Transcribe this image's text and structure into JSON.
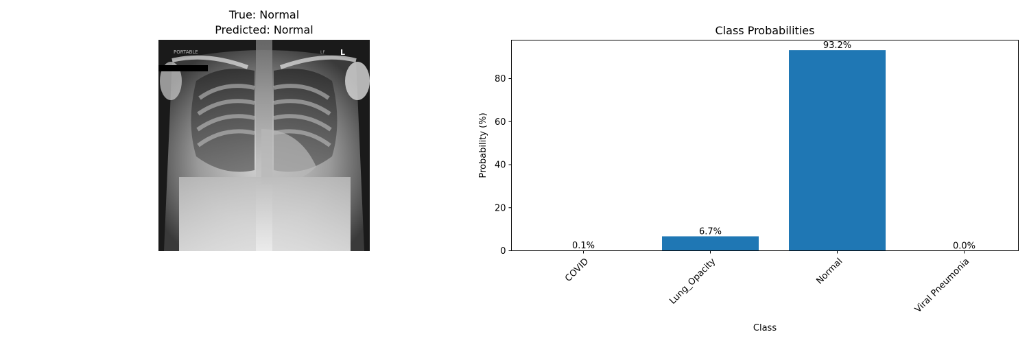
{
  "left_panel": {
    "title_true": "True: Normal",
    "title_predicted": "Predicted: Normal",
    "image_text": {
      "portable": "PORTABLE",
      "marker": "L",
      "side": "LF"
    }
  },
  "colors": {
    "bar": "#1f77b4",
    "axis": "#000000"
  },
  "chart_data": {
    "type": "bar",
    "title": "Class Probabilities",
    "xlabel": "Class",
    "ylabel": "Probability (%)",
    "categories": [
      "COVID",
      "Lung_Opacity",
      "Normal",
      "Viral Pneumonia"
    ],
    "values": [
      0.1,
      6.7,
      93.2,
      0.0
    ],
    "data_labels": [
      "0.1%",
      "6.7%",
      "93.2%",
      "0.0%"
    ],
    "yticks": [
      0,
      20,
      40,
      60,
      80
    ],
    "ylim": [
      0,
      97.86
    ],
    "grid": false,
    "xtick_rotation": 45
  }
}
